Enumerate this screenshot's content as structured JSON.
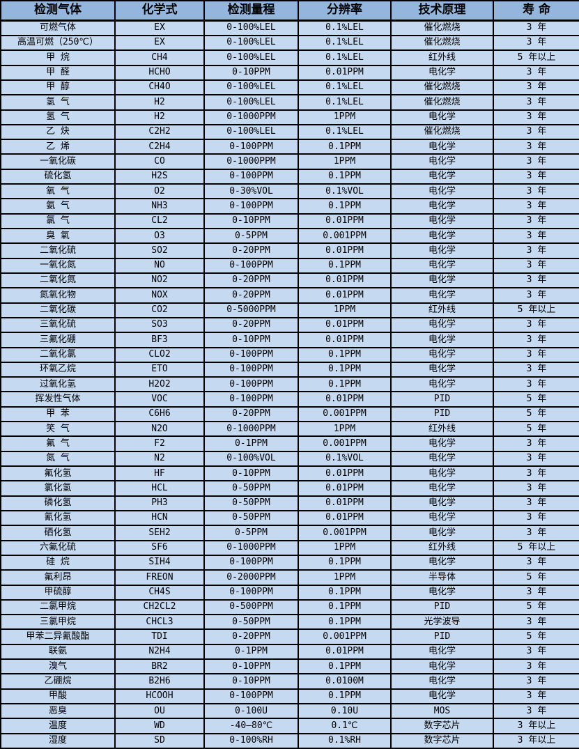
{
  "table": {
    "title": "gas sensor specification table",
    "colors": {
      "header_bg": "#94b6de",
      "row_bg": "#c5d9f1",
      "border": "#000000",
      "text": "#000000"
    },
    "headers": [
      "检测气体",
      "化学式",
      "检测量程",
      "分辨率",
      "技术原理",
      "寿  命"
    ],
    "column_keys": [
      "gas-name",
      "chemical-formula",
      "detection-range",
      "resolution",
      "technology-principle",
      "lifespan"
    ],
    "rows": [
      [
        "可燃气体",
        "EX",
        "0-100%LEL",
        "0.1%LEL",
        "催化燃烧",
        "3 年"
      ],
      [
        "高温可燃（250℃）",
        "EX",
        "0-100%LEL",
        "0.1%LEL",
        "催化燃烧",
        "3 年"
      ],
      [
        "甲 烷",
        "CH4",
        "0-100%LEL",
        "0.1%LEL",
        "红外线",
        "5 年以上"
      ],
      [
        "甲 醛",
        "HCHO",
        "0-10PPM",
        "0.01PPM",
        "电化学",
        "3 年"
      ],
      [
        "甲 醇",
        "CH4O",
        "0-100%LEL",
        "0.1%LEL",
        "催化燃烧",
        "3 年"
      ],
      [
        "氢 气",
        "H2",
        "0-100%LEL",
        "0.1%LEL",
        "催化燃烧",
        "3 年"
      ],
      [
        "氢 气",
        "H2",
        "0-1000PPM",
        "1PPM",
        "电化学",
        "3 年"
      ],
      [
        "乙 炔",
        "C2H2",
        "0-100%LEL",
        "0.1%LEL",
        "催化燃烧",
        "3 年"
      ],
      [
        "乙 烯",
        "C2H4",
        "0-100PPM",
        "0.1PPM",
        "电化学",
        "3 年"
      ],
      [
        "一氧化碳",
        "CO",
        "0-1000PPM",
        "1PPM",
        "电化学",
        "3 年"
      ],
      [
        "硫化氢",
        "H2S",
        "0-100PPM",
        "0.1PPM",
        "电化学",
        "3 年"
      ],
      [
        "氧 气",
        "O2",
        "0-30%VOL",
        "0.1%VOL",
        "电化学",
        "3 年"
      ],
      [
        "氨 气",
        "NH3",
        "0-100PPM",
        "0.1PPM",
        "电化学",
        "3 年"
      ],
      [
        "氯 气",
        "CL2",
        "0-10PPM",
        "0.01PPM",
        "电化学",
        "3 年"
      ],
      [
        "臭 氧",
        "O3",
        "0-5PPM",
        "0.001PPM",
        "电化学",
        "3 年"
      ],
      [
        "二氧化硫",
        "SO2",
        "0-20PPM",
        "0.01PPM",
        "电化学",
        "3 年"
      ],
      [
        "一氧化氮",
        "NO",
        "0-100PPM",
        "0.1PPM",
        "电化学",
        "3 年"
      ],
      [
        "二氧化氮",
        "NO2",
        "0-20PPM",
        "0.01PPM",
        "电化学",
        "3 年"
      ],
      [
        "氮氧化物",
        "NOX",
        "0-20PPM",
        "0.01PPM",
        "电化学",
        "3 年"
      ],
      [
        "二氧化碳",
        "CO2",
        "0-5000PPM",
        "1PPM",
        "红外线",
        "5 年以上"
      ],
      [
        "三氧化硫",
        "SO3",
        "0-20PPM",
        "0.01PPM",
        "电化学",
        "3 年"
      ],
      [
        "三氟化硼",
        "BF3",
        "0-10PPM",
        "0.01PPM",
        "电化学",
        "3 年"
      ],
      [
        "二氧化氯",
        "CLO2",
        "0-100PPM",
        "0.1PPM",
        "电化学",
        "3 年"
      ],
      [
        "环氧乙烷",
        "ETO",
        "0-100PPM",
        "0.1PPM",
        "电化学",
        "3 年"
      ],
      [
        "过氧化氢",
        "H2O2",
        "0-100PPM",
        "0.1PPM",
        "电化学",
        "3 年"
      ],
      [
        "挥发性气体",
        "VOC",
        "0-100PPM",
        "0.01PPM",
        "PID",
        "5 年"
      ],
      [
        "甲 苯",
        "C6H6",
        "0-20PPM",
        "0.001PPM",
        "PID",
        "5 年"
      ],
      [
        "笑 气",
        "N2O",
        "0-1000PPM",
        "1PPM",
        "红外线",
        "5 年"
      ],
      [
        "氟 气",
        "F2",
        "0-1PPM",
        "0.001PPM",
        "电化学",
        "3 年"
      ],
      [
        "氮 气",
        "N2",
        "0-100%VOL",
        "0.1%VOL",
        "电化学",
        "3 年"
      ],
      [
        "氟化氢",
        "HF",
        "0-10PPM",
        "0.01PPM",
        "电化学",
        "3 年"
      ],
      [
        "氯化氢",
        "HCL",
        "0-50PPM",
        "0.01PPM",
        "电化学",
        "3 年"
      ],
      [
        "磷化氢",
        "PH3",
        "0-50PPM",
        "0.01PPM",
        "电化学",
        "3 年"
      ],
      [
        "氰化氢",
        "HCN",
        "0-50PPM",
        "0.01PPM",
        "电化学",
        "3 年"
      ],
      [
        "硒化氢",
        "SEH2",
        "0-5PPM",
        "0.001PPM",
        "电化学",
        "3 年"
      ],
      [
        "六氟化硫",
        "SF6",
        "0-1000PPM",
        "1PPM",
        "红外线",
        "5 年以上"
      ],
      [
        "硅 烷",
        "SIH4",
        "0-100PPM",
        "0.1PPM",
        "电化学",
        "3 年"
      ],
      [
        "氟利昂",
        "FREON",
        "0-2000PPM",
        "1PPM",
        "半导体",
        "5 年"
      ],
      [
        "甲硫醇",
        "CH4S",
        "0-100PPM",
        "0.1PPM",
        "电化学",
        "3 年"
      ],
      [
        "二氯甲烷",
        "CH2CL2",
        "0-500PPM",
        "0.1PPM",
        "PID",
        "5 年"
      ],
      [
        "三氯甲烷",
        "CHCL3",
        "0-50PPM",
        "0.1PPM",
        "光学波导",
        "3 年"
      ],
      [
        "甲苯二异氰酸酯",
        "TDI",
        "0-20PPM",
        "0.001PPM",
        "PID",
        "5 年"
      ],
      [
        "联氨",
        "N2H4",
        "0-1PPM",
        "0.01PPM",
        "电化学",
        "3 年"
      ],
      [
        "溴气",
        "BR2",
        "0-10PPM",
        "0.1PPM",
        "电化学",
        "3 年"
      ],
      [
        "乙硼烷",
        "B2H6",
        "0-10PPM",
        "0.0100M",
        "电化学",
        "3 年"
      ],
      [
        "甲酸",
        "HCOOH",
        "0-100PPM",
        "0.1PPM",
        "电化学",
        "3 年"
      ],
      [
        "恶臭",
        "OU",
        "0-100U",
        "0.10U",
        "MOS",
        "3 年"
      ],
      [
        "温度",
        "WD",
        "-40—80℃",
        "0.1℃",
        "数字芯片",
        "3 年以上"
      ],
      [
        "湿度",
        "SD",
        "0-100%RH",
        "0.1%RH",
        "数字芯片",
        "3 年以上"
      ]
    ]
  }
}
